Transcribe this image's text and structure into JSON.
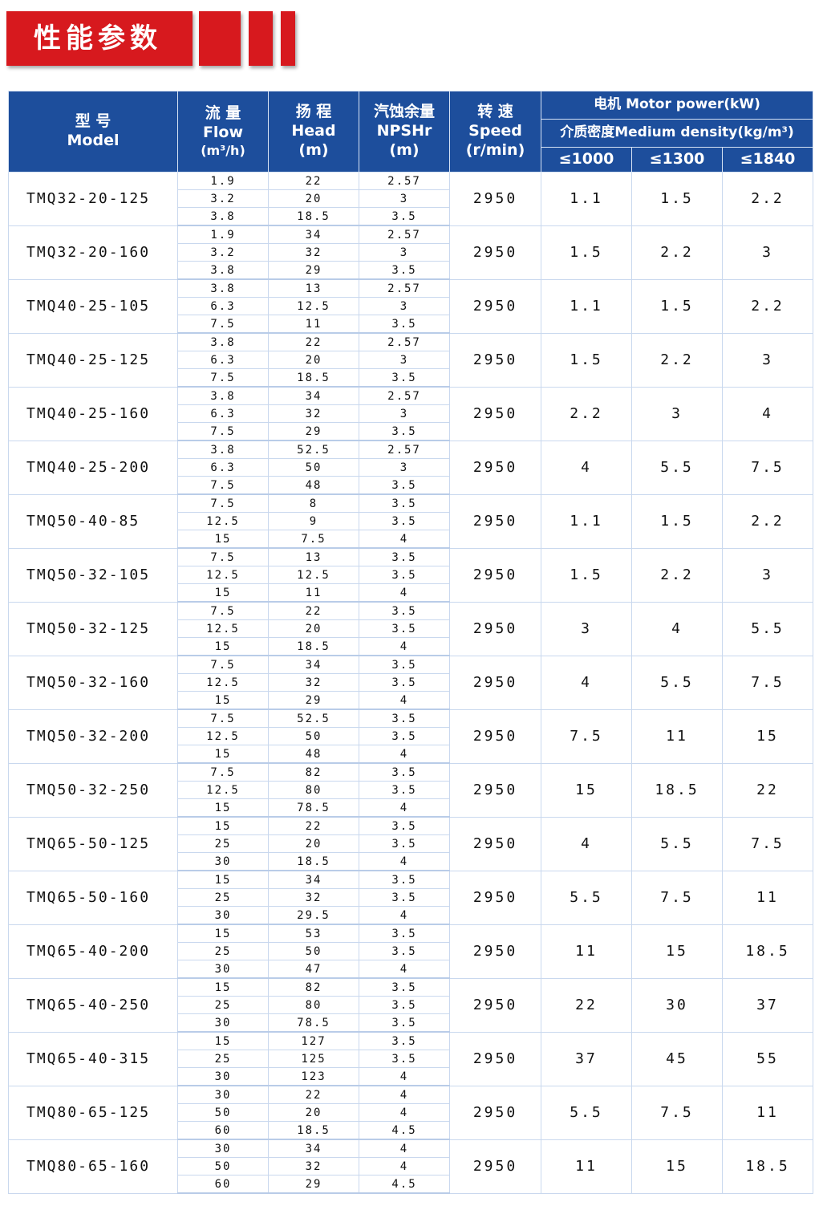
{
  "title": "性能参数",
  "colors": {
    "accent_red": "#d7191e",
    "header_blue": "#1d4e9c"
  },
  "headers": {
    "model_cn": "型 号",
    "model_en": "Model",
    "flow_cn": "流 量",
    "flow_en": "Flow",
    "flow_unit": "(m³/h)",
    "head_cn": "扬 程",
    "head_en": "Head",
    "head_unit": "(m)",
    "npsh_cn": "汽蚀余量",
    "npsh_en": "NPSHr",
    "npsh_unit": "(m)",
    "speed_cn": "转 速",
    "speed_en": "Speed",
    "speed_unit": "(r/min)",
    "motor": "电机 Motor power(kW)",
    "density": "介质密度Medium density(kg/m³)",
    "d1": "≤1000",
    "d2": "≤1300",
    "d3": "≤1840"
  },
  "rows": [
    {
      "model": "TMQ32-20-125",
      "flow": [
        "1.9",
        "3.2",
        "3.8"
      ],
      "head": [
        "22",
        "20",
        "18.5"
      ],
      "npsh": [
        "2.57",
        "3",
        "3.5"
      ],
      "speed": "2950",
      "p": [
        "1.1",
        "1.5",
        "2.2"
      ]
    },
    {
      "model": "TMQ32-20-160",
      "flow": [
        "1.9",
        "3.2",
        "3.8"
      ],
      "head": [
        "34",
        "32",
        "29"
      ],
      "npsh": [
        "2.57",
        "3",
        "3.5"
      ],
      "speed": "2950",
      "p": [
        "1.5",
        "2.2",
        "3"
      ]
    },
    {
      "model": "TMQ40-25-105",
      "flow": [
        "3.8",
        "6.3",
        "7.5"
      ],
      "head": [
        "13",
        "12.5",
        "11"
      ],
      "npsh": [
        "2.57",
        "3",
        "3.5"
      ],
      "speed": "2950",
      "p": [
        "1.1",
        "1.5",
        "2.2"
      ]
    },
    {
      "model": "TMQ40-25-125",
      "flow": [
        "3.8",
        "6.3",
        "7.5"
      ],
      "head": [
        "22",
        "20",
        "18.5"
      ],
      "npsh": [
        "2.57",
        "3",
        "3.5"
      ],
      "speed": "2950",
      "p": [
        "1.5",
        "2.2",
        "3"
      ]
    },
    {
      "model": "TMQ40-25-160",
      "flow": [
        "3.8",
        "6.3",
        "7.5"
      ],
      "head": [
        "34",
        "32",
        "29"
      ],
      "npsh": [
        "2.57",
        "3",
        "3.5"
      ],
      "speed": "2950",
      "p": [
        "2.2",
        "3",
        "4"
      ]
    },
    {
      "model": "TMQ40-25-200",
      "flow": [
        "3.8",
        "6.3",
        "7.5"
      ],
      "head": [
        "52.5",
        "50",
        "48"
      ],
      "npsh": [
        "2.57",
        "3",
        "3.5"
      ],
      "speed": "2950",
      "p": [
        "4",
        "5.5",
        "7.5"
      ]
    },
    {
      "model": "TMQ50-40-85",
      "flow": [
        "7.5",
        "12.5",
        "15"
      ],
      "head": [
        "8",
        "9",
        "7.5"
      ],
      "npsh": [
        "3.5",
        "3.5",
        "4"
      ],
      "speed": "2950",
      "p": [
        "1.1",
        "1.5",
        "2.2"
      ]
    },
    {
      "model": "TMQ50-32-105",
      "flow": [
        "7.5",
        "12.5",
        "15"
      ],
      "head": [
        "13",
        "12.5",
        "11"
      ],
      "npsh": [
        "3.5",
        "3.5",
        "4"
      ],
      "speed": "2950",
      "p": [
        "1.5",
        "2.2",
        "3"
      ]
    },
    {
      "model": "TMQ50-32-125",
      "flow": [
        "7.5",
        "12.5",
        "15"
      ],
      "head": [
        "22",
        "20",
        "18.5"
      ],
      "npsh": [
        "3.5",
        "3.5",
        "4"
      ],
      "speed": "2950",
      "p": [
        "3",
        "4",
        "5.5"
      ]
    },
    {
      "model": "TMQ50-32-160",
      "flow": [
        "7.5",
        "12.5",
        "15"
      ],
      "head": [
        "34",
        "32",
        "29"
      ],
      "npsh": [
        "3.5",
        "3.5",
        "4"
      ],
      "speed": "2950",
      "p": [
        "4",
        "5.5",
        "7.5"
      ]
    },
    {
      "model": "TMQ50-32-200",
      "flow": [
        "7.5",
        "12.5",
        "15"
      ],
      "head": [
        "52.5",
        "50",
        "48"
      ],
      "npsh": [
        "3.5",
        "3.5",
        "4"
      ],
      "speed": "2950",
      "p": [
        "7.5",
        "11",
        "15"
      ]
    },
    {
      "model": "TMQ50-32-250",
      "flow": [
        "7.5",
        "12.5",
        "15"
      ],
      "head": [
        "82",
        "80",
        "78.5"
      ],
      "npsh": [
        "3.5",
        "3.5",
        "4"
      ],
      "speed": "2950",
      "p": [
        "15",
        "18.5",
        "22"
      ]
    },
    {
      "model": "TMQ65-50-125",
      "flow": [
        "15",
        "25",
        "30"
      ],
      "head": [
        "22",
        "20",
        "18.5"
      ],
      "npsh": [
        "3.5",
        "3.5",
        "4"
      ],
      "speed": "2950",
      "p": [
        "4",
        "5.5",
        "7.5"
      ]
    },
    {
      "model": "TMQ65-50-160",
      "flow": [
        "15",
        "25",
        "30"
      ],
      "head": [
        "34",
        "32",
        "29.5"
      ],
      "npsh": [
        "3.5",
        "3.5",
        "4"
      ],
      "speed": "2950",
      "p": [
        "5.5",
        "7.5",
        "11"
      ]
    },
    {
      "model": "TMQ65-40-200",
      "flow": [
        "15",
        "25",
        "30"
      ],
      "head": [
        "53",
        "50",
        "47"
      ],
      "npsh": [
        "3.5",
        "3.5",
        "4"
      ],
      "speed": "2950",
      "p": [
        "11",
        "15",
        "18.5"
      ]
    },
    {
      "model": "TMQ65-40-250",
      "flow": [
        "15",
        "25",
        "30"
      ],
      "head": [
        "82",
        "80",
        "78.5"
      ],
      "npsh": [
        "3.5",
        "3.5",
        "3.5"
      ],
      "speed": "2950",
      "p": [
        "22",
        "30",
        "37"
      ]
    },
    {
      "model": "TMQ65-40-315",
      "flow": [
        "15",
        "25",
        "30"
      ],
      "head": [
        "127",
        "125",
        "123"
      ],
      "npsh": [
        "3.5",
        "3.5",
        "4"
      ],
      "speed": "2950",
      "p": [
        "37",
        "45",
        "55"
      ]
    },
    {
      "model": "TMQ80-65-125",
      "flow": [
        "30",
        "50",
        "60"
      ],
      "head": [
        "22",
        "20",
        "18.5"
      ],
      "npsh": [
        "4",
        "4",
        "4.5"
      ],
      "speed": "2950",
      "p": [
        "5.5",
        "7.5",
        "11"
      ]
    },
    {
      "model": "TMQ80-65-160",
      "flow": [
        "30",
        "50",
        "60"
      ],
      "head": [
        "34",
        "32",
        "29"
      ],
      "npsh": [
        "4",
        "4",
        "4.5"
      ],
      "speed": "2950",
      "p": [
        "11",
        "15",
        "18.5"
      ]
    }
  ]
}
